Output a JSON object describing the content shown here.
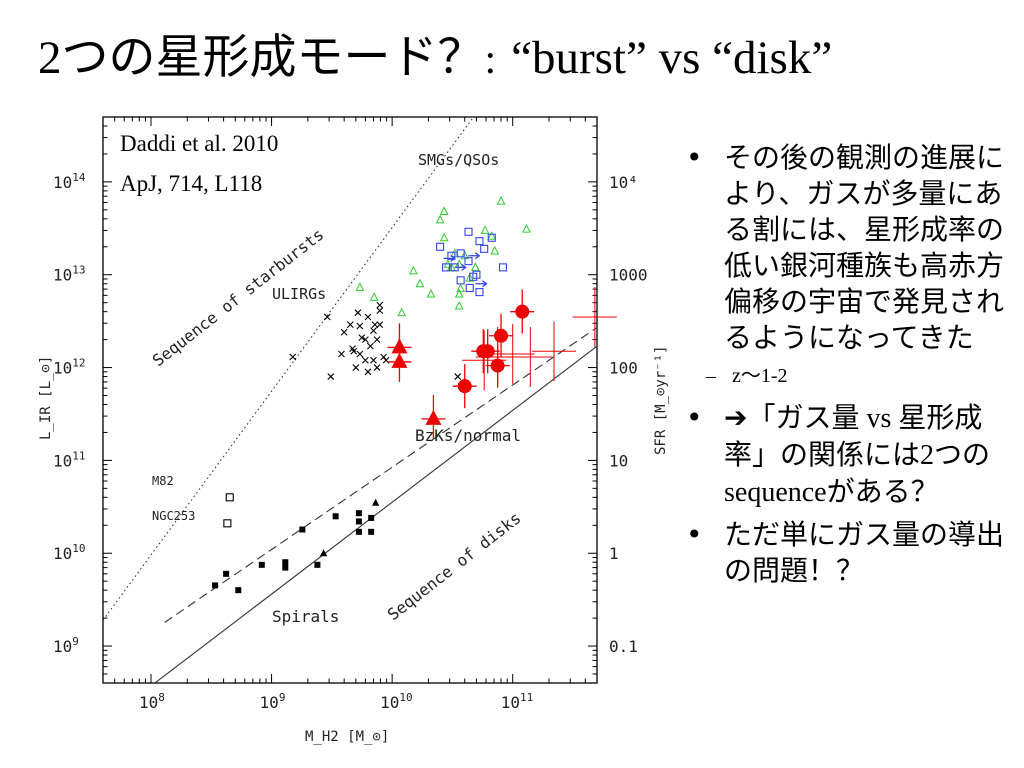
{
  "title": {
    "number": "2",
    "main_jp": "つの星形成モード？",
    "separator": ":",
    "english": "“burst” vs “disk”"
  },
  "bullets": [
    {
      "text": "その後の観測の進展により、ガスが多量にある割には、星形成率の低い銀河種族も高赤方偏移の宇宙で発見されるようになってきた"
    },
    {
      "text_parts": [
        "➔「ガス量",
        " vs ",
        "星形成率」の関係には",
        "2",
        "つの",
        "sequence",
        "がある？"
      ]
    },
    {
      "text": "ただ単にガス量の導出の問題！？"
    }
  ],
  "sub_bullet": "z〜1-2",
  "chart_data": {
    "type": "scatter",
    "xlabel": "M_H2 [M_⊙]",
    "ylabel_left": "L_IR [L_⊙]",
    "ylabel_right": "SFR [M_⊙yr⁻¹]",
    "x_scale": "log",
    "y_scale": "log",
    "xlim": [
      40000000.0,
      500000000000.0
    ],
    "ylim": [
      400000000.0,
      500000000000000.0
    ],
    "x_ticks": [
      {
        "v": 100000000.0,
        "base": "10",
        "exp": "8"
      },
      {
        "v": 1000000000.0,
        "base": "10",
        "exp": "9"
      },
      {
        "v": 10000000000.0,
        "base": "10",
        "exp": "10"
      },
      {
        "v": 100000000000.0,
        "base": "10",
        "exp": "11"
      }
    ],
    "y_ticks_left": [
      {
        "v": 1000000000.0,
        "base": "10",
        "exp": "9"
      },
      {
        "v": 10000000000.0,
        "base": "10",
        "exp": "10"
      },
      {
        "v": 100000000000.0,
        "base": "10",
        "exp": "11"
      },
      {
        "v": 1000000000000.0,
        "base": "10",
        "exp": "12"
      },
      {
        "v": 10000000000000.0,
        "base": "10",
        "exp": "13"
      },
      {
        "v": 100000000000000.0,
        "base": "10",
        "exp": "14"
      }
    ],
    "y_ticks_right": [
      {
        "v": 1000000000.0,
        "label": "0.1"
      },
      {
        "v": 10000000000.0,
        "label": "1"
      },
      {
        "v": 100000000000.0,
        "label": "10"
      },
      {
        "v": 1000000000000.0,
        "label": "100"
      },
      {
        "v": 10000000000000.0,
        "label": "1000"
      },
      {
        "v": 100000000000000.0,
        "label": "10⁴"
      }
    ],
    "citation": [
      "Daddi  et al. 2010",
      "ApJ, 714, L118"
    ],
    "annotations": {
      "smgs": "SMGs/QSOs",
      "ulirgs": "ULIRGs",
      "starbursts": "Sequence of starbursts",
      "bzks": "BzKs/normal",
      "disks": "Sequence of disks",
      "spirals": "Spirals",
      "m82": "M82",
      "ngc253": "NGC253"
    },
    "lines": {
      "disk_sequence": [
        [
          40000000.0,
          150000000.0
        ],
        [
          500000000000.0,
          1700000000000.0
        ]
      ],
      "starburst_sequence": [
        [
          40000000.0,
          1900000000.0
        ],
        [
          500000000000.0,
          3.2e+16
        ]
      ],
      "fit_dashed": [
        [
          130000000.0,
          1800000000.0
        ],
        [
          500000000000.0,
          2700000000000.0
        ]
      ]
    },
    "series": [
      {
        "name": "Spirals",
        "marker": "square",
        "color": "#000000",
        "points": [
          [
            340000000.0,
            4500000000.0
          ],
          [
            420000000.0,
            6000000000.0
          ],
          [
            530000000.0,
            4000000000.0
          ],
          [
            830000000.0,
            7500000000.0
          ],
          [
            1300000000.0,
            8000000000.0
          ],
          [
            1300000000.0,
            7000000000.0
          ],
          [
            1800000000.0,
            18000000000.0
          ],
          [
            2400000000.0,
            7500000000.0
          ],
          [
            3400000000.0,
            25000000000.0
          ],
          [
            5300000000.0,
            22000000000.0
          ],
          [
            5300000000.0,
            27000000000.0
          ],
          [
            5300000000.0,
            17000000000.0
          ],
          [
            6700000000.0,
            24000000000.0
          ],
          [
            6700000000.0,
            17000000000.0
          ]
        ]
      },
      {
        "name": "Small triangles",
        "marker": "triangle",
        "color": "#000000",
        "points": [
          [
            2700000000.0,
            10000000000.0
          ],
          [
            7300000000.0,
            35000000000.0
          ]
        ]
      },
      {
        "name": "ULIRGs",
        "marker": "cross",
        "color": "#000000",
        "points": [
          [
            1500000000.0,
            1300000000000.0
          ],
          [
            4000000000.0,
            2400000000000.0
          ],
          [
            4700000000.0,
            1600000000000.0
          ],
          [
            5400000000.0,
            2800000000000.0
          ],
          [
            5400000000.0,
            1400000000000.0
          ],
          [
            6000000000.0,
            2000000000000.0
          ],
          [
            6000000000.0,
            1200000000000.0
          ],
          [
            6600000000.0,
            1700000000000.0
          ],
          [
            7000000000.0,
            2500000000000.0
          ],
          [
            7500000000.0,
            1000000000000.0
          ],
          [
            7900000000.0,
            2900000000000.0
          ],
          [
            8500000000.0,
            1300000000000.0
          ],
          [
            5000000000.0,
            1000000000000.0
          ],
          [
            6300000000.0,
            900000000000.0
          ],
          [
            7900000000.0,
            4700000000000.0
          ],
          [
            4500000000.0,
            2900000000000.0
          ],
          [
            3800000000.0,
            1400000000000.0
          ],
          [
            6300000000.0,
            3500000000000.0
          ],
          [
            7000000000.0,
            1200000000000.0
          ],
          [
            5600000000.0,
            2100000000000.0
          ],
          [
            7200000000.0,
            2900000000000.0
          ],
          [
            7500000000.0,
            2000000000000.0
          ],
          [
            8900000000.0,
            1200000000000.0
          ],
          [
            4800000000.0,
            1500000000000.0
          ],
          [
            3100000000.0,
            800000000000.0
          ],
          [
            5200000000.0,
            3900000000000.0
          ],
          [
            7900000000.0,
            4100000000000.0
          ],
          [
            2900000000.0,
            3500000000000.0
          ],
          [
            35000000000.0,
            800000000000.0
          ]
        ]
      },
      {
        "name": "SMGs",
        "marker": "triangle-open",
        "color": "#33cc33",
        "points": [
          [
            12000000000.0,
            3900000000000.0
          ],
          [
            15000000000.0,
            11000000000000.0
          ],
          [
            17000000000.0,
            8000000000000.0
          ],
          [
            21000000000.0,
            6200000000000.0
          ],
          [
            25000000000.0,
            39000000000000.0
          ],
          [
            27000000000.0,
            25000000000000.0
          ],
          [
            27000000000.0,
            48000000000000.0
          ],
          [
            29000000000.0,
            13000000000000.0
          ],
          [
            31000000000.0,
            12000000000000.0
          ],
          [
            33000000000.0,
            17000000000000.0
          ],
          [
            36000000000.0,
            13000000000000.0
          ],
          [
            36000000000.0,
            6200000000000.0
          ],
          [
            36000000000.0,
            4600000000000.0
          ],
          [
            37000000000.0,
            7100000000000.0
          ],
          [
            40000000000.0,
            16000000000000.0
          ],
          [
            44000000000.0,
            9200000000000.0
          ],
          [
            49000000000.0,
            12000000000000.0
          ],
          [
            59000000000.0,
            30000000000000.0
          ],
          [
            67000000000.0,
            26000000000000.0
          ],
          [
            71000000000.0,
            18000000000000.0
          ],
          [
            80000000000.0,
            62000000000000.0
          ],
          [
            130000000000.0,
            31000000000000.0
          ],
          [
            5400000000.0,
            7300000000000.0
          ],
          [
            7100000000.0,
            5700000000000.0
          ]
        ]
      },
      {
        "name": "QSOs",
        "marker": "square-open",
        "color": "#3344ee",
        "points": [
          [
            28000000000.0,
            12000000000000.0
          ],
          [
            31000000000.0,
            16000000000000.0
          ],
          [
            33000000000.0,
            12000000000000.0
          ],
          [
            37000000000.0,
            17000000000000.0
          ],
          [
            43000000000.0,
            14000000000000.0
          ],
          [
            43000000000.0,
            29000000000000.0
          ],
          [
            47000000000.0,
            9500000000000.0
          ],
          [
            50000000000.0,
            10000000000000.0
          ],
          [
            53000000000.0,
            23000000000000.0
          ],
          [
            58000000000.0,
            19000000000000.0
          ],
          [
            67000000000.0,
            25000000000000.0
          ],
          [
            83000000000.0,
            12000000000000.0
          ],
          [
            37000000000.0,
            8700000000000.0
          ],
          [
            44000000000.0,
            7200000000000.0
          ],
          [
            53000000000.0,
            6500000000000.0
          ],
          [
            25000000000.0,
            20000000000000.0
          ]
        ]
      },
      {
        "name": "QSO upper limits",
        "marker": "arrow-right",
        "color": "#3344ee",
        "points": [
          [
            30000000000.0,
            15000000000000.0
          ],
          [
            37000000000.0,
            12000000000000.0
          ],
          [
            48000000000.0,
            16000000000000.0
          ],
          [
            55000000000.0,
            8000000000000.0
          ]
        ]
      },
      {
        "name": "BzKs",
        "marker": "circle",
        "color": "#ee0000",
        "points": [
          [
            40000000000.0,
            630000000000.0
          ],
          [
            57000000000.0,
            1500000000000.0
          ],
          [
            62000000000.0,
            1500000000000.0
          ],
          [
            75000000000.0,
            1050000000000.0
          ],
          [
            80000000000.0,
            2200000000000.0
          ],
          [
            120000000000.0,
            4000000000000.0
          ]
        ]
      },
      {
        "name": "BzK triangles",
        "marker": "triangle-filled",
        "color": "#ee0000",
        "points": [
          [
            11500000000.0,
            1650000000000.0
          ],
          [
            11500000000.0,
            1150000000000.0
          ],
          [
            22000000000.0,
            280000000000.0
          ]
        ]
      },
      {
        "name": "Error-bar points",
        "marker": "errorbar",
        "color": "#ee0000",
        "points": [
          [
            58000000000.0,
            1200000000000.0
          ],
          [
            75000000000.0,
            1300000000000.0
          ],
          [
            100000000000.0,
            1400000000000.0
          ],
          [
            140000000000.0,
            1300000000000.0
          ],
          [
            220000000000.0,
            1500000000000.0
          ],
          [
            480000000000.0,
            3500000000000.0
          ]
        ]
      },
      {
        "name": "M82 & NGC253",
        "marker": "square-open",
        "color": "#000000",
        "points": [
          [
            450000000.0,
            40000000000.0
          ],
          [
            430000000.0,
            21000000000.0
          ]
        ]
      }
    ]
  }
}
